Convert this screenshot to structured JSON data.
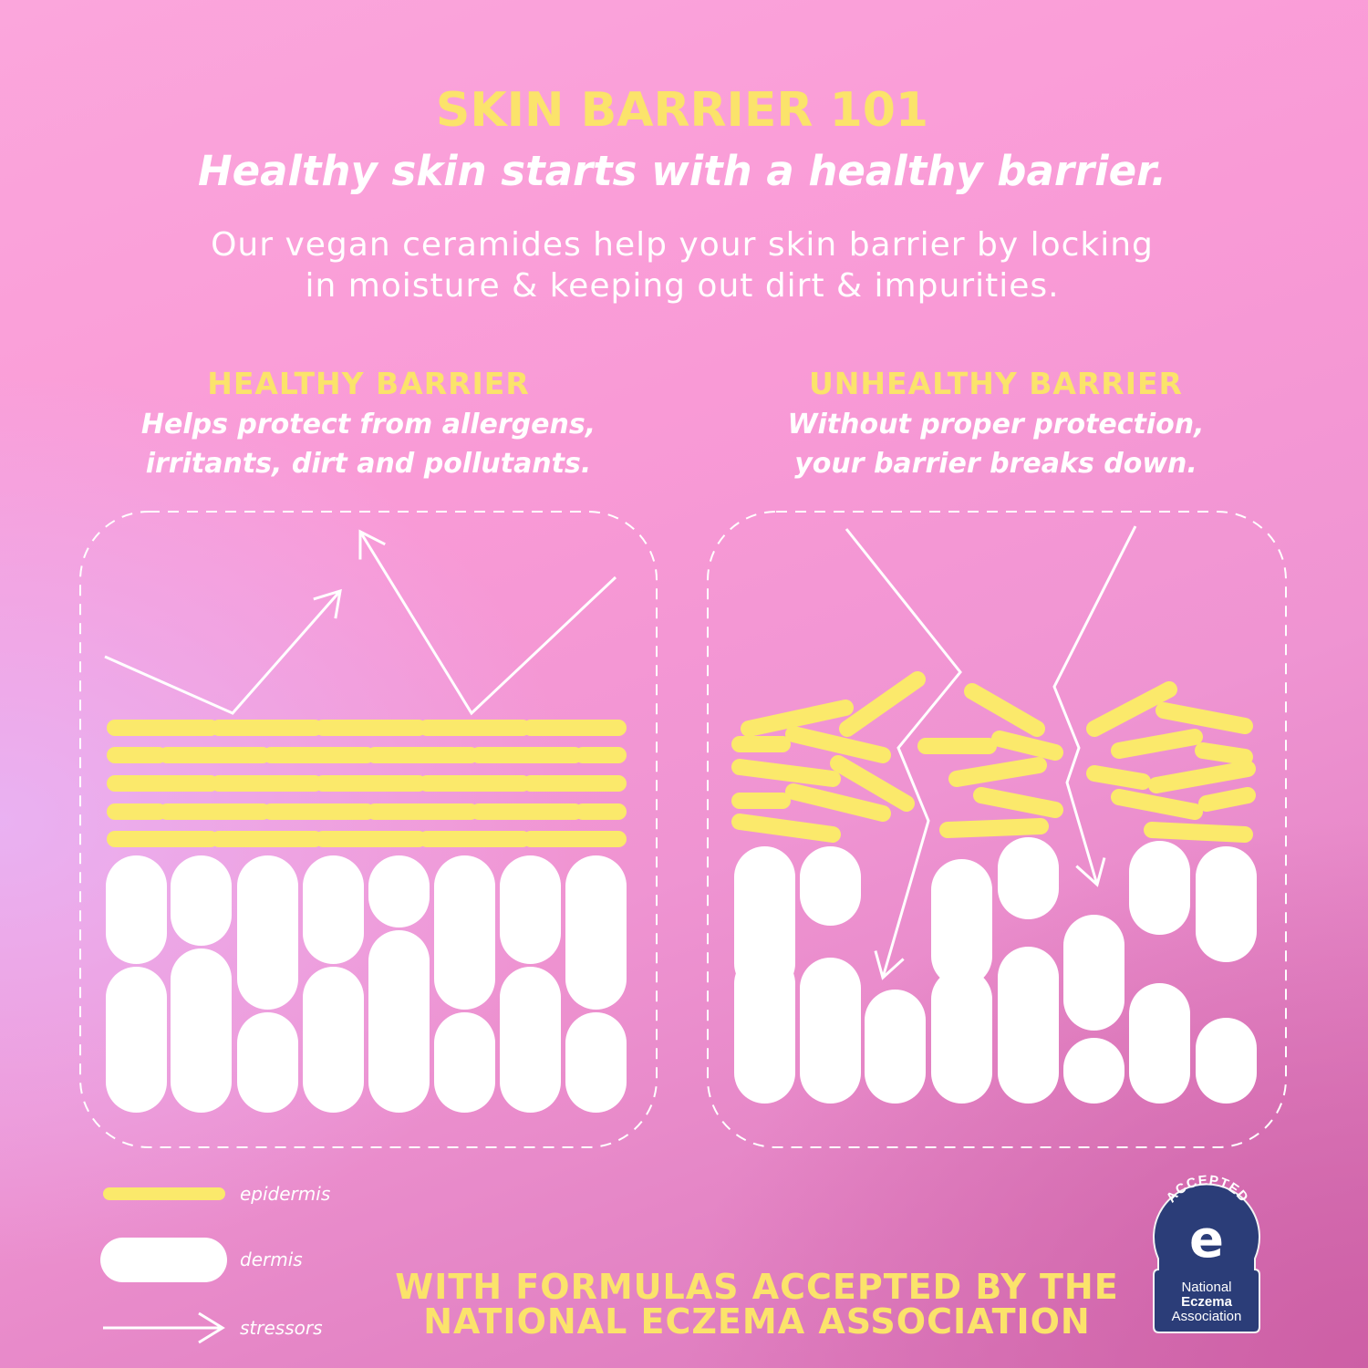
{
  "header": {
    "title": "SKIN BARRIER 101",
    "subtitle": "Healthy skin starts with a healthy barrier.",
    "body_line1": "Our vegan ceramides help your skin barrier by locking",
    "body_line2": "in moisture & keeping out dirt & impurities."
  },
  "healthy": {
    "title": "HEALTHY BARRIER",
    "line1": "Helps protect from allergens,",
    "line2": "irritants, dirt and pollutants."
  },
  "unhealthy": {
    "title": "UNHEALTHY BARRIER",
    "line1": "Without proper protection,",
    "line2": "your barrier breaks down."
  },
  "legend": {
    "epidermis": "epidermis",
    "dermis": "dermis",
    "stressors": "stressors"
  },
  "footer": {
    "line1": "WITH FORMULAS ACCEPTED BY THE",
    "line2": "NATIONAL ECZEMA ASSOCIATION"
  },
  "badge": {
    "arc": "ACCEPTED",
    "line1": "National",
    "line2": "Eczema",
    "line3": "Association"
  },
  "colors": {
    "epidermis": "#fbe96b",
    "dermis": "#ffffff",
    "badge": "#2b3d78"
  }
}
